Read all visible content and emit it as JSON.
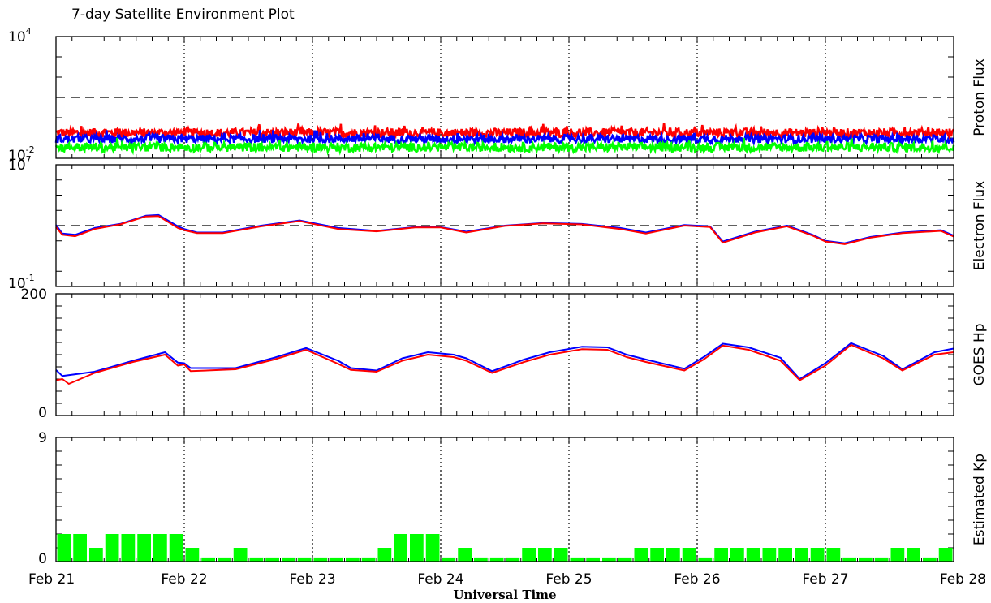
{
  "chart_data": {
    "type": "line",
    "title": "7-day Satellite Environment Plot",
    "xlabel": "Universal Time",
    "x_ticks": [
      "Feb 21",
      "Feb 22",
      "Feb 23",
      "Feb 24",
      "Feb 25",
      "Feb 26",
      "Feb 27",
      "Feb 28"
    ],
    "x_range_days": [
      0,
      7
    ],
    "panels": [
      {
        "id": "proton",
        "type": "line",
        "ylabel": "Proton Flux",
        "yscale": "log",
        "ylim": [
          0.01,
          10000
        ],
        "y_tick_labels": [
          {
            "base": "10",
            "exp": "4"
          },
          {
            "base": "10",
            "exp": "-2"
          }
        ],
        "threshold": 10,
        "series": [
          {
            "color": "#ff0000",
            "level": 0.18,
            "noise": 0.22
          },
          {
            "color": "#0000ff",
            "level": 0.09,
            "noise": 0.2
          },
          {
            "color": "#00ff00",
            "level": 0.035,
            "noise": 0.22
          }
        ]
      },
      {
        "id": "electron",
        "type": "line",
        "ylabel": "Electron Flux",
        "yscale": "log",
        "ylim": [
          0.1,
          10000000
        ],
        "y_tick_labels": [
          {
            "base": "10",
            "exp": "7"
          },
          {
            "base": "10",
            "exp": "-1"
          }
        ],
        "threshold": 1000,
        "series": [
          {
            "color": "#0000ff",
            "x": [
              0,
              0.05,
              0.15,
              0.3,
              0.5,
              0.7,
              0.8,
              0.95,
              1.0,
              1.1,
              1.3,
              1.6,
              1.9,
              2.2,
              2.5,
              2.8,
              3.0,
              3.2,
              3.5,
              3.8,
              4.1,
              4.4,
              4.6,
              4.9,
              5.1,
              5.2,
              5.45,
              5.7,
              5.9,
              6.0,
              6.15,
              6.35,
              6.6,
              6.9,
              7.0
            ],
            "y": [
              1100,
              300,
              250,
              700,
              1300,
              4500,
              5000,
              900,
              600,
              350,
              350,
              1000,
              2200,
              700,
              450,
              800,
              800,
              400,
              1000,
              1500,
              1300,
              700,
              350,
              1100,
              900,
              90,
              400,
              1000,
              250,
              100,
              70,
              180,
              350,
              500,
              220
            ]
          },
          {
            "color": "#ff0000",
            "x": [
              0,
              0.05,
              0.15,
              0.3,
              0.5,
              0.7,
              0.8,
              0.95,
              1.0,
              1.1,
              1.3,
              1.6,
              1.9,
              2.2,
              2.5,
              2.8,
              3.0,
              3.2,
              3.5,
              3.8,
              4.1,
              4.4,
              4.6,
              4.9,
              5.1,
              5.2,
              5.45,
              5.7,
              5.9,
              6.0,
              6.15,
              6.35,
              6.6,
              6.9,
              7.0
            ],
            "y": [
              800,
              250,
              200,
              600,
              1200,
              4000,
              4200,
              700,
              500,
              320,
              320,
              900,
              2000,
              600,
              420,
              750,
              750,
              350,
              950,
              1400,
              1200,
              600,
              300,
              1000,
              800,
              75,
              350,
              900,
              220,
              90,
              60,
              160,
              320,
              450,
              190
            ]
          }
        ]
      },
      {
        "id": "hp",
        "type": "line",
        "ylabel": "GOES Hp",
        "yscale": "linear",
        "ylim": [
          0,
          200
        ],
        "y_tick_labels": [
          "200",
          "0"
        ],
        "series": [
          {
            "color": "#0000ff",
            "x": [
              0,
              0.05,
              0.3,
              0.6,
              0.85,
              0.95,
              1.0,
              1.05,
              1.4,
              1.7,
              1.95,
              2.2,
              2.3,
              2.5,
              2.7,
              2.9,
              3.1,
              3.2,
              3.4,
              3.65,
              3.85,
              4.1,
              4.3,
              4.45,
              4.6,
              4.9,
              5.05,
              5.2,
              5.4,
              5.65,
              5.8,
              6.0,
              6.2,
              6.45,
              6.6,
              6.85,
              7.0
            ],
            "y": [
              75,
              65,
              72,
              90,
              104,
              87,
              86,
              78,
              78,
              95,
              111,
              90,
              78,
              74,
              94,
              104,
              100,
              94,
              73,
              92,
              104,
              113,
              112,
              100,
              92,
              77,
              96,
              118,
              112,
              95,
              60,
              86,
              119,
              98,
              76,
              104,
              110
            ]
          },
          {
            "color": "#ff0000",
            "x": [
              0,
              0.05,
              0.1,
              0.3,
              0.6,
              0.85,
              0.95,
              1.0,
              1.05,
              1.4,
              1.7,
              1.95,
              2.2,
              2.3,
              2.5,
              2.7,
              2.9,
              3.1,
              3.2,
              3.4,
              3.65,
              3.85,
              4.1,
              4.3,
              4.45,
              4.6,
              4.9,
              5.05,
              5.2,
              5.4,
              5.65,
              5.8,
              6.0,
              6.2,
              6.45,
              6.6,
              6.85,
              7.0
            ],
            "y": [
              58,
              60,
              52,
              70,
              88,
              100,
              82,
              84,
              73,
              76,
              92,
              108,
              85,
              75,
              72,
              90,
              100,
              96,
              90,
              70,
              88,
              100,
              109,
              108,
              96,
              88,
              74,
              92,
              115,
              108,
              90,
              58,
              82,
              116,
              94,
              74,
              100,
              104
            ]
          }
        ]
      },
      {
        "id": "kp",
        "type": "bar",
        "ylabel": "Estimated Kp",
        "yscale": "linear",
        "ylim": [
          0,
          9
        ],
        "y_tick_labels": [
          "9",
          "0"
        ],
        "bar_color": "#00ff00",
        "bar_width_days": 0.125,
        "values": [
          2,
          2,
          1,
          2,
          2,
          2,
          2,
          2,
          1,
          0.3,
          0.3,
          1,
          0.3,
          0.3,
          0.3,
          0.3,
          0.3,
          0.3,
          0.3,
          0.3,
          1,
          2,
          2,
          2,
          0.3,
          1,
          0.3,
          0.3,
          0.3,
          1,
          1,
          1,
          0.3,
          0.3,
          0.3,
          0.3,
          1,
          1,
          1,
          1,
          0.3,
          1,
          1,
          1,
          1,
          1,
          1,
          1,
          1,
          0.3,
          0.3,
          0.3,
          1,
          1,
          0.3,
          1
        ]
      }
    ]
  }
}
